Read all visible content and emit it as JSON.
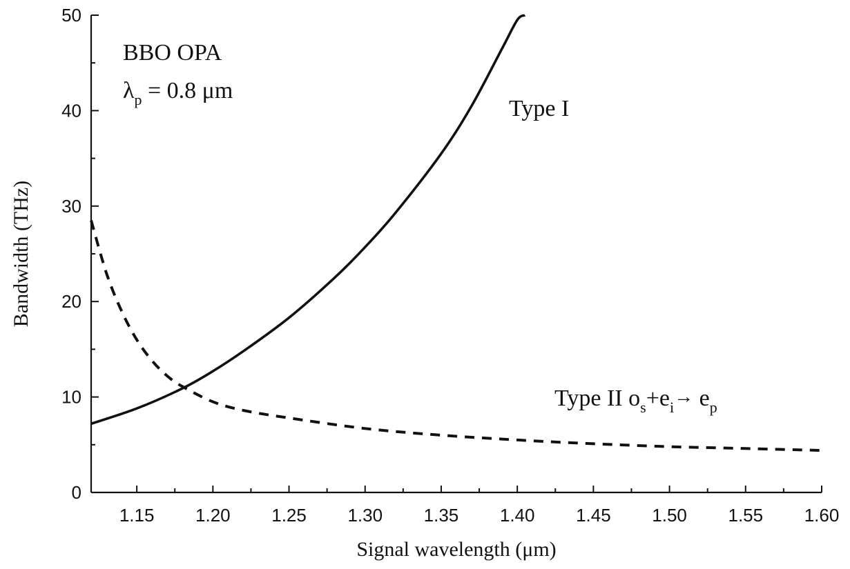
{
  "chart_data": {
    "type": "line",
    "xlabel": "Signal wavelength (μm)",
    "ylabel": "Bandwidth (THz)",
    "xlim": [
      1.12,
      1.6
    ],
    "ylim": [
      0,
      50
    ],
    "x_ticks": [
      1.15,
      1.2,
      1.25,
      1.3,
      1.35,
      1.4,
      1.45,
      1.5,
      1.55,
      1.6
    ],
    "x_tick_labels": [
      "1.15",
      "1.20",
      "1.25",
      "1.30",
      "1.35",
      "1.40",
      "1.45",
      "1.50",
      "1.55",
      "1.60"
    ],
    "y_ticks": [
      0,
      10,
      20,
      30,
      40,
      50
    ],
    "y_tick_labels": [
      "0",
      "10",
      "20",
      "30",
      "40",
      "50"
    ],
    "grid": false,
    "annotation": {
      "line1": "BBO OPA",
      "line2_symbol": "λ",
      "line2_subscript": "p",
      "line2_rest": " = 0.8 μm"
    },
    "series": [
      {
        "name": "Type I",
        "style": "solid",
        "color": "#111111",
        "x": [
          1.12,
          1.15,
          1.18,
          1.2,
          1.22,
          1.25,
          1.28,
          1.3,
          1.32,
          1.35,
          1.37,
          1.39,
          1.4,
          1.405
        ],
        "y": [
          7.2,
          8.8,
          10.9,
          12.7,
          14.8,
          18.3,
          22.5,
          25.7,
          29.3,
          35.5,
          40.5,
          46.5,
          49.5,
          51
        ]
      },
      {
        "name_parts": {
          "prefix": "Type II o",
          "s_sub": "s",
          "plus_e": "+e",
          "i_sub": "i",
          "arrow": "→",
          "e_after": " e",
          "p_sub": "p"
        },
        "style": "dashed",
        "color": "#111111",
        "x": [
          1.12,
          1.13,
          1.14,
          1.15,
          1.16,
          1.17,
          1.18,
          1.2,
          1.22,
          1.25,
          1.3,
          1.35,
          1.4,
          1.45,
          1.5,
          1.55,
          1.6
        ],
        "y": [
          28.5,
          23.0,
          19.0,
          16.0,
          13.8,
          12.2,
          11.1,
          9.5,
          8.6,
          7.8,
          6.7,
          6.0,
          5.5,
          5.1,
          4.8,
          4.6,
          4.4
        ]
      }
    ]
  }
}
